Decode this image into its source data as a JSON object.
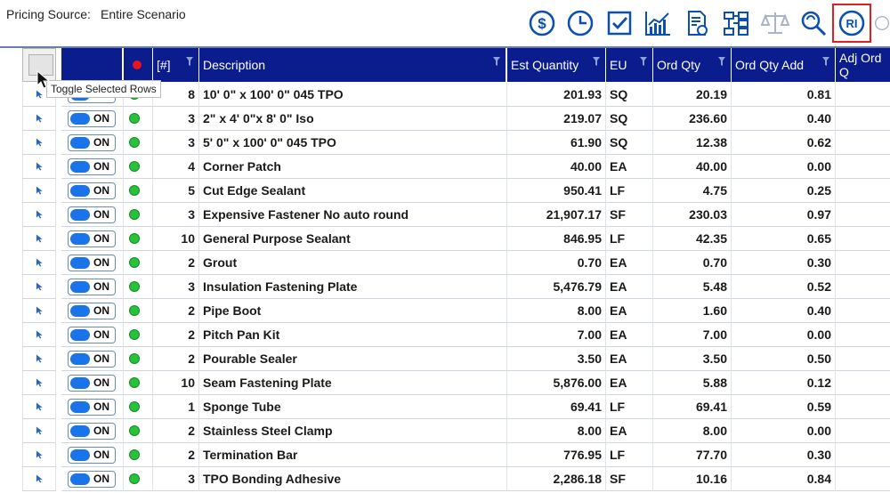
{
  "header": {
    "pricing_label": "Pricing Source:",
    "pricing_value": "Entire Scenario"
  },
  "toolbar": {
    "icons": [
      "dollar-icon",
      "clock-icon",
      "checkbox-icon",
      "chart-icon",
      "document-icon",
      "hierarchy-icon",
      "scale-icon",
      "search-refresh-icon",
      "ri-icon",
      "partial-icon"
    ],
    "ri_label": "RI",
    "selected": "ri-icon",
    "accent_color": "#0b4fb0"
  },
  "columns": [
    "",
    "",
    "",
    "[#]",
    "Description",
    "Est Quantity",
    "EU",
    "Ord Qty",
    "Ord Qty Add",
    "Adj Ord Q"
  ],
  "tooltip": "Toggle Selected Rows",
  "toggle_label": "ON",
  "rows": [
    {
      "num": "8",
      "desc": "10' 0\" x 100' 0\" 045 TPO",
      "est": "201.93",
      "eu": "SQ",
      "ord": "20.19",
      "add": "0.81"
    },
    {
      "num": "3",
      "desc": "2\" x 4' 0\"x 8' 0\" Iso",
      "est": "219.07",
      "eu": "SQ",
      "ord": "236.60",
      "add": "0.40"
    },
    {
      "num": "3",
      "desc": "5' 0\" x 100' 0\" 045 TPO",
      "est": "61.90",
      "eu": "SQ",
      "ord": "12.38",
      "add": "0.62"
    },
    {
      "num": "4",
      "desc": "Corner Patch",
      "est": "40.00",
      "eu": "EA",
      "ord": "40.00",
      "add": "0.00"
    },
    {
      "num": "5",
      "desc": "Cut Edge Sealant",
      "est": "950.41",
      "eu": "LF",
      "ord": "4.75",
      "add": "0.25"
    },
    {
      "num": "3",
      "desc": "Expensive Fastener No auto round",
      "est": "21,907.17",
      "eu": "SF",
      "ord": "230.03",
      "add": "0.97"
    },
    {
      "num": "10",
      "desc": "General Purpose Sealant",
      "est": "846.95",
      "eu": "LF",
      "ord": "42.35",
      "add": "0.65"
    },
    {
      "num": "2",
      "desc": "Grout",
      "est": "0.70",
      "eu": "EA",
      "ord": "0.70",
      "add": "0.30"
    },
    {
      "num": "3",
      "desc": "Insulation Fastening Plate",
      "est": "5,476.79",
      "eu": "EA",
      "ord": "5.48",
      "add": "0.52"
    },
    {
      "num": "2",
      "desc": "Pipe Boot",
      "est": "8.00",
      "eu": "EA",
      "ord": "1.60",
      "add": "0.40"
    },
    {
      "num": "2",
      "desc": "Pitch Pan Kit",
      "est": "7.00",
      "eu": "EA",
      "ord": "7.00",
      "add": "0.00"
    },
    {
      "num": "2",
      "desc": "Pourable Sealer",
      "est": "3.50",
      "eu": "EA",
      "ord": "3.50",
      "add": "0.50"
    },
    {
      "num": "10",
      "desc": "Seam Fastening Plate",
      "est": "5,876.00",
      "eu": "EA",
      "ord": "5.88",
      "add": "0.12"
    },
    {
      "num": "1",
      "desc": "Sponge Tube",
      "est": "69.41",
      "eu": "LF",
      "ord": "69.41",
      "add": "0.59"
    },
    {
      "num": "2",
      "desc": "Stainless Steel Clamp",
      "est": "8.00",
      "eu": "EA",
      "ord": "8.00",
      "add": "0.00"
    },
    {
      "num": "2",
      "desc": "Termination Bar",
      "est": "776.95",
      "eu": "LF",
      "ord": "77.70",
      "add": "0.30"
    },
    {
      "num": "3",
      "desc": "TPO Bonding Adhesive",
      "est": "2,286.18",
      "eu": "SF",
      "ord": "10.16",
      "add": "0.84"
    }
  ]
}
